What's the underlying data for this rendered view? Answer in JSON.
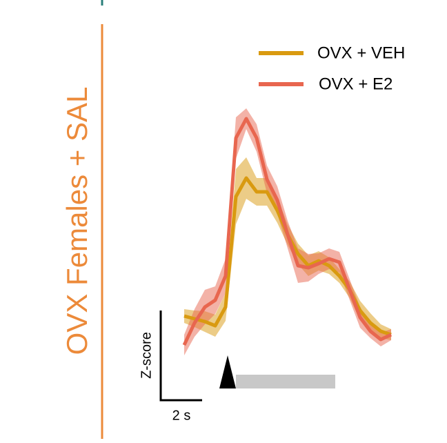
{
  "chart_data": {
    "type": "line",
    "panel_label": "OVX Females + SAL",
    "x": [
      0,
      0.5,
      1,
      1.5,
      2,
      2.5,
      3,
      3.5,
      4,
      4.5,
      5,
      5.5,
      6,
      6.5,
      7,
      7.5,
      8,
      8.5,
      9,
      9.5,
      10
    ],
    "xlim": [
      0,
      10
    ],
    "ylim": [
      0,
      37
    ],
    "series": [
      {
        "name": "OVX + VEH",
        "color": "#d99a10",
        "values": [
          6.2,
          5.8,
          5.4,
          4.8,
          7.5,
          23.5,
          26.2,
          24.2,
          24.2,
          21.5,
          18,
          15.2,
          13.5,
          14.2,
          13.5,
          12,
          10,
          7,
          5.2,
          4,
          3.5
        ],
        "errors": [
          1,
          1.2,
          1.5,
          1.6,
          2,
          4,
          3,
          2,
          2,
          1.8,
          1.5,
          1.5,
          1.5,
          1.4,
          1.2,
          1,
          1.2,
          1.4,
          1.4,
          1,
          0.8
        ]
      },
      {
        "name": "OVX + E2",
        "color": "#e8664f",
        "values": [
          2,
          5.2,
          7.5,
          8.5,
          12,
          32,
          34.8,
          32,
          26,
          23,
          18,
          13.5,
          13.2,
          13.8,
          14.5,
          14,
          10,
          6,
          4,
          2.8,
          3.5
        ],
        "errors": [
          1.5,
          2,
          2.5,
          2,
          2.5,
          3,
          1.5,
          2,
          2,
          2,
          2,
          2.5,
          2,
          1.5,
          1.5,
          1.5,
          1.5,
          1.5,
          1,
          1,
          0.8
        ]
      }
    ],
    "stimulus_x": [
      2.1,
      7.3
    ],
    "scale_bar": {
      "x_length": 2,
      "x_label": "2 s",
      "y_length": 13,
      "y_label": "Z-score"
    },
    "legend": "upper right"
  }
}
